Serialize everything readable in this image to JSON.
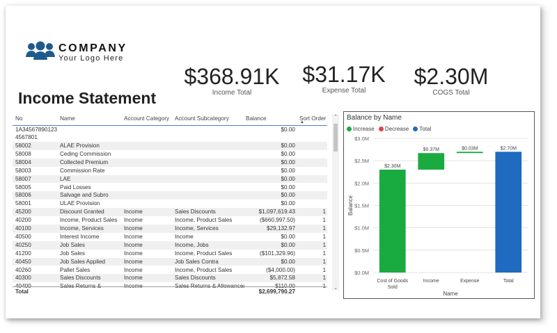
{
  "logo": {
    "name": "COMPANY",
    "tagline": "Your Logo Here",
    "color": "#1f5a8c"
  },
  "page_title": "Income Statement",
  "kpis": [
    {
      "value": "$368.91K",
      "label": "Income Total"
    },
    {
      "value": "$31.17K",
      "label": "Expense Total"
    },
    {
      "value": "$2.30M",
      "label": "COGS Total"
    }
  ],
  "table": {
    "columns": [
      "No",
      "Name",
      "Account Category",
      "Account Subcategory",
      "Balance",
      "Sort Order"
    ],
    "rows": [
      {
        "no": "1A34567890123 4567801",
        "name": "",
        "cat": "",
        "sub": "",
        "bal": "$0.00",
        "sort": ""
      },
      {
        "no": "58002",
        "name": "ALAE Provision",
        "cat": "",
        "sub": "",
        "bal": "$0.00",
        "sort": ""
      },
      {
        "no": "58008",
        "name": "Ceding Commission",
        "cat": "",
        "sub": "",
        "bal": "$0.00",
        "sort": ""
      },
      {
        "no": "58004",
        "name": "Collected Premium",
        "cat": "",
        "sub": "",
        "bal": "$0.00",
        "sort": ""
      },
      {
        "no": "58003",
        "name": "Commission Rate",
        "cat": "",
        "sub": "",
        "bal": "$0.00",
        "sort": ""
      },
      {
        "no": "58007",
        "name": "LAE",
        "cat": "",
        "sub": "",
        "bal": "$0.00",
        "sort": ""
      },
      {
        "no": "58005",
        "name": "Paid Losses",
        "cat": "",
        "sub": "",
        "bal": "$0.00",
        "sort": ""
      },
      {
        "no": "58006",
        "name": "Salvage and Subro",
        "cat": "",
        "sub": "",
        "bal": "$0.00",
        "sort": ""
      },
      {
        "no": "58001",
        "name": "ULAE Provision",
        "cat": "",
        "sub": "",
        "bal": "$0.00",
        "sort": ""
      },
      {
        "no": "45200",
        "name": "Discount Granted",
        "cat": "Income",
        "sub": "Sales Discounts",
        "bal": "$1,097,619.43",
        "sort": "1"
      },
      {
        "no": "40200",
        "name": "Income, Product Sales",
        "cat": "Income",
        "sub": "Income, Product Sales",
        "bal": "($660,997.50)",
        "sort": "1"
      },
      {
        "no": "40100",
        "name": "Income, Services",
        "cat": "Income",
        "sub": "Income, Services",
        "bal": "$29,132.97",
        "sort": "1"
      },
      {
        "no": "40500",
        "name": "Interest Income",
        "cat": "Income",
        "sub": "Income",
        "bal": "$0.00",
        "sort": "1"
      },
      {
        "no": "40250",
        "name": "Job Sales",
        "cat": "Income",
        "sub": "Income, Jobs",
        "bal": "$0.00",
        "sort": "1"
      },
      {
        "no": "41200",
        "name": "Job Sales",
        "cat": "Income",
        "sub": "Income, Product Sales",
        "bal": "($101,329.96)",
        "sort": "1"
      },
      {
        "no": "40450",
        "name": "Job Sales Applied",
        "cat": "Income",
        "sub": "Job Sales Contra",
        "bal": "$0.00",
        "sort": "1"
      },
      {
        "no": "40260",
        "name": "Pallet Sales",
        "cat": "Income",
        "sub": "Income, Product Sales",
        "bal": "($4,000.00)",
        "sort": "1"
      },
      {
        "no": "40300",
        "name": "Sales Discounts",
        "cat": "Income",
        "sub": "Sales Discounts",
        "bal": "$5,872.58",
        "sort": "1"
      },
      {
        "no": "40400",
        "name": "Sales Returns &",
        "cat": "Income",
        "sub": "Sales Returns & Allowances",
        "bal": "$110.00",
        "sort": "1"
      }
    ],
    "total_label": "Total",
    "total_value": "$2,699,790.27"
  },
  "chart_data": {
    "type": "bar",
    "title": "Balance by Name",
    "subtype": "waterfall",
    "legend": [
      {
        "name": "Increase",
        "color": "#1aab40"
      },
      {
        "name": "Decrease",
        "color": "#e0434f"
      },
      {
        "name": "Total",
        "color": "#1f6bbf"
      }
    ],
    "categories": [
      "Cost of Goods Sold",
      "Income",
      "Expense",
      "Total"
    ],
    "values": [
      2.3,
      0.37,
      0.03,
      2.7
    ],
    "kinds": [
      "increase",
      "increase",
      "increase",
      "total"
    ],
    "data_labels": [
      "$2.30M",
      "$0.37M",
      "$0.03M",
      "$2.70M"
    ],
    "ylim": [
      0,
      3.0
    ],
    "yticks": [
      "$0.0M",
      "$0.5M",
      "$1.0M",
      "$1.5M",
      "$2.0M",
      "$2.5M",
      "$3.0M"
    ],
    "xlabel": "Name",
    "ylabel": "Balance"
  }
}
